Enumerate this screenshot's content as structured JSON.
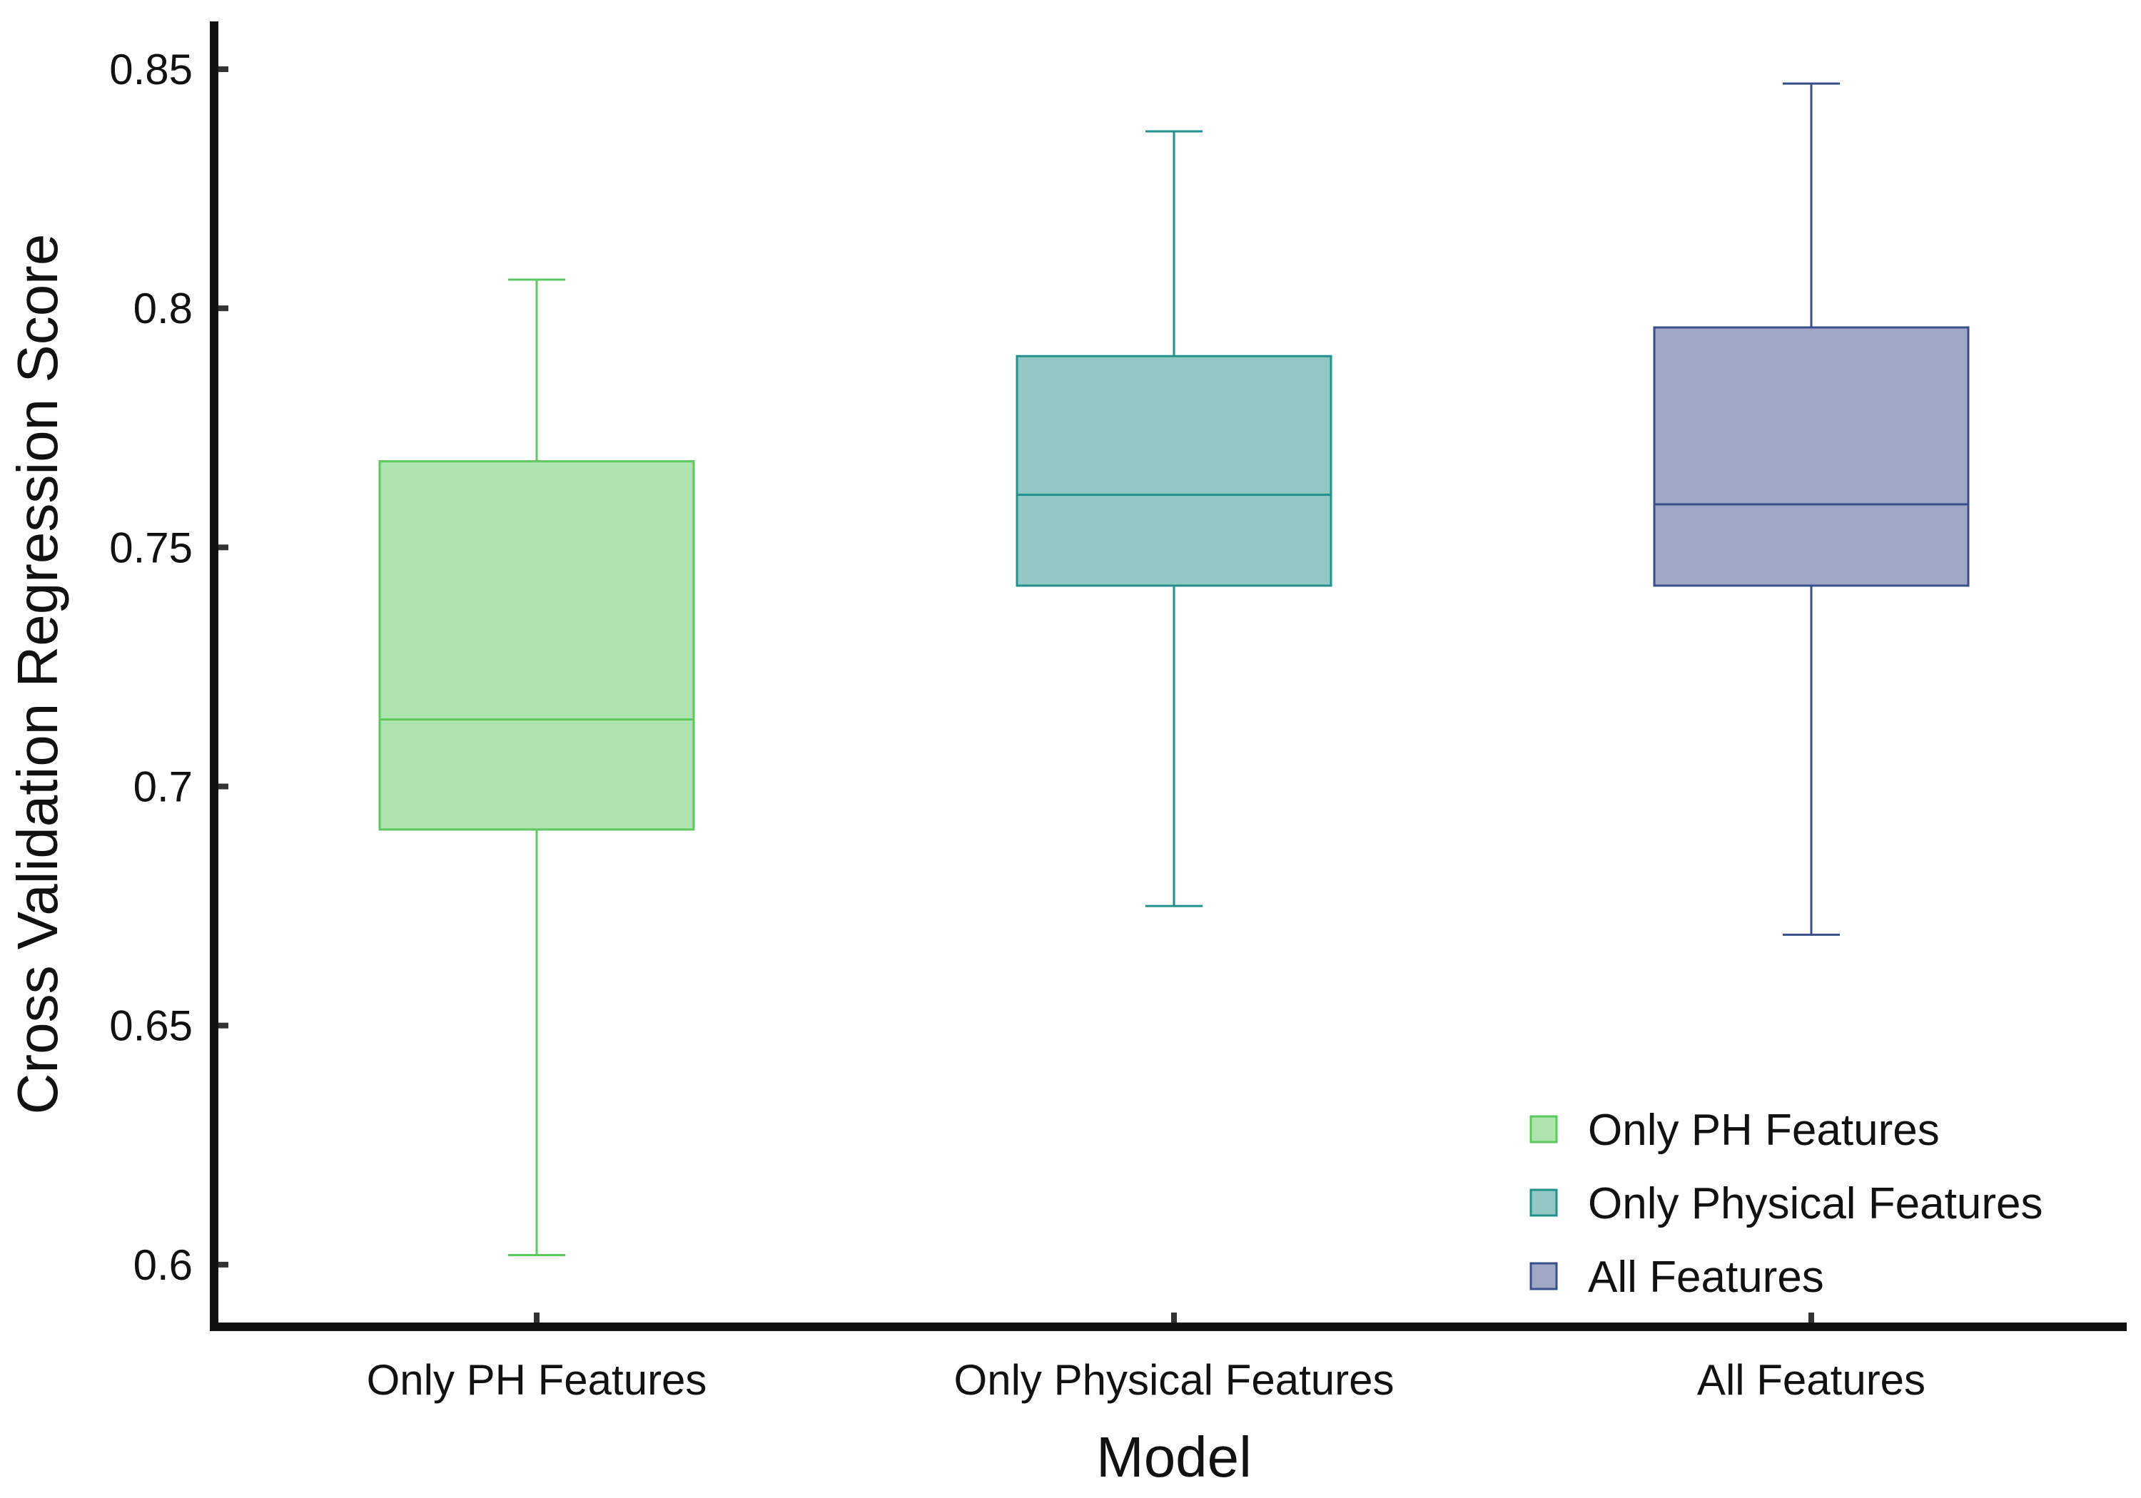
{
  "chart_data": {
    "type": "box",
    "xlabel": "Model",
    "ylabel": "Cross Validation Regression Score",
    "ylim": [
      0.587,
      0.86
    ],
    "yticks": [
      0.6,
      0.65,
      0.7,
      0.75,
      0.8,
      0.85
    ],
    "ytick_labels": [
      "0.6",
      "0.65",
      "0.7",
      "0.75",
      "0.8",
      "0.85"
    ],
    "legend_position": "bottom-right",
    "grid": false,
    "categories": [
      "Only PH Features",
      "Only Physical Features",
      "All Features"
    ],
    "series": [
      {
        "name": "Only PH Features",
        "whisker_low": 0.602,
        "q1": 0.691,
        "median": 0.714,
        "q3": 0.768,
        "whisker_high": 0.806,
        "fill": "#aee4ad",
        "stroke": "#5cc85e"
      },
      {
        "name": "Only Physical Features",
        "whisker_low": 0.675,
        "q1": 0.742,
        "median": 0.761,
        "q3": 0.79,
        "whisker_high": 0.837,
        "fill": "#92c7c4",
        "stroke": "#22918c"
      },
      {
        "name": "All Features",
        "whisker_low": 0.669,
        "q1": 0.742,
        "median": 0.759,
        "q3": 0.796,
        "whisker_high": 0.847,
        "fill": "#9fa9c6",
        "stroke": "#3a4f8a"
      }
    ]
  }
}
